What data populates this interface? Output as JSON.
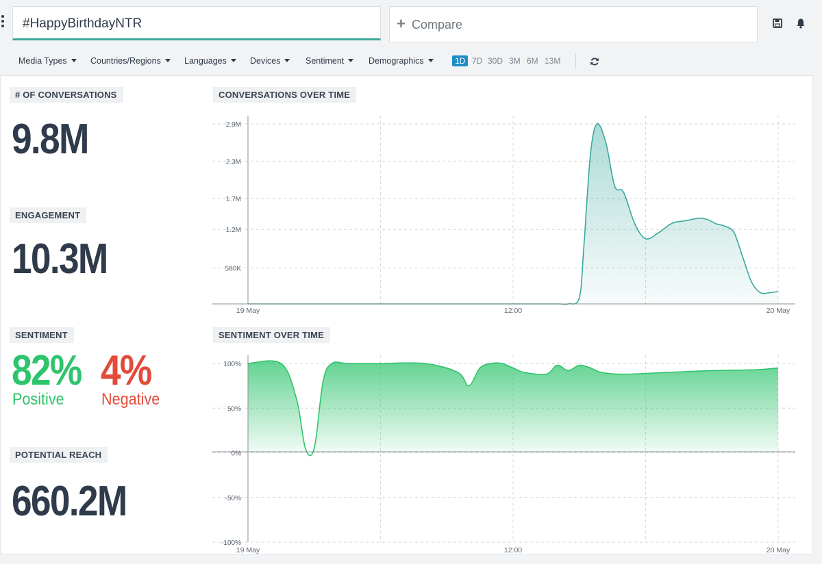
{
  "search": {
    "query": "#HappyBirthdayNTR"
  },
  "compare": {
    "label": "Compare"
  },
  "icons": {
    "menu": "more-vert-icon",
    "save": "save-icon",
    "notifications": "bell-icon",
    "add": "plus-icon",
    "refresh": "refresh-icon"
  },
  "filters": [
    {
      "label": "Media Types"
    },
    {
      "label": "Countries/Regions"
    },
    {
      "label": "Languages"
    },
    {
      "label": "Devices"
    },
    {
      "label": "Sentiment"
    },
    {
      "label": "Demographics"
    }
  ],
  "time_ranges": [
    {
      "label": "1D",
      "active": true
    },
    {
      "label": "7D",
      "active": false
    },
    {
      "label": "30D",
      "active": false
    },
    {
      "label": "3M",
      "active": false
    },
    {
      "label": "6M",
      "active": false
    },
    {
      "label": "13M",
      "active": false
    }
  ],
  "metrics": {
    "conversations": {
      "label": "# OF CONVERSATIONS",
      "value": "9.8M"
    },
    "engagement": {
      "label": "ENGAGEMENT",
      "value": "10.3M"
    },
    "sentiment": {
      "label": "SENTIMENT",
      "positive_value": "82%",
      "positive_label": "Positive",
      "negative_value": "4%",
      "negative_label": "Negative"
    },
    "reach": {
      "label": "POTENTIAL REACH",
      "value": "660.2M"
    }
  },
  "colors": {
    "accent": "#3aa89c",
    "positive": "#2ec46c",
    "negative": "#e24b3a",
    "active_range": "#1e8dc4"
  },
  "chart_data": [
    {
      "type": "area",
      "title": "CONVERSATIONS OVER TIME",
      "y_ticks": [
        "580K",
        "1.2M",
        "1.7M",
        "2.3M",
        "2.9M"
      ],
      "y_tick_values": [
        580000,
        1200000,
        1700000,
        2300000,
        2900000
      ],
      "ylim": [
        0,
        2900000
      ],
      "x_ticks": [
        "19 May",
        "12:00",
        "20 May"
      ],
      "x_tick_hours": [
        0,
        12,
        24
      ],
      "grid": true,
      "color": "#3aa89c",
      "series": [
        {
          "x": [
            0,
            2,
            4,
            6,
            8,
            10,
            12,
            14,
            14.5,
            15,
            15.2,
            15.5,
            15.8,
            16.2,
            16.6,
            17.0,
            17.5,
            18.0,
            18.6,
            19.2,
            19.8,
            20.4,
            20.8,
            21.2,
            21.6,
            22.0,
            22.4,
            22.8,
            23.2,
            23.6,
            24.0
          ],
          "values": [
            0,
            0,
            0,
            0,
            0,
            0,
            0,
            0,
            0,
            100000,
            900000,
            2400000,
            2900000,
            2600000,
            1900000,
            1800000,
            1300000,
            1050000,
            1150000,
            1300000,
            1340000,
            1380000,
            1360000,
            1290000,
            1250000,
            1150000,
            750000,
            350000,
            180000,
            180000,
            200000
          ]
        }
      ]
    },
    {
      "type": "area",
      "title": "SENTIMENT OVER TIME",
      "y_ticks": [
        "100%",
        "50%",
        "0%",
        "-50%",
        "-100%"
      ],
      "y_tick_values": [
        100,
        50,
        0,
        -50,
        -100
      ],
      "ylim": [
        -100,
        100
      ],
      "x_ticks": [
        "19 May",
        "12:00",
        "20 May"
      ],
      "x_tick_hours": [
        0,
        12,
        24
      ],
      "grid": true,
      "color": "#2ec46c",
      "series": [
        {
          "x": [
            0,
            1.5,
            2.2,
            2.6,
            3.0,
            3.4,
            3.8,
            4.5,
            6,
            8,
            9.5,
            10.0,
            10.5,
            11.0,
            11.5,
            12.0,
            12.5,
            13.5,
            14.0,
            14.5,
            15.0,
            15.5,
            16.0,
            17.0,
            19.0,
            21.0,
            23.0,
            24.0
          ],
          "values": [
            100,
            100,
            60,
            5,
            5,
            80,
            100,
            100,
            100,
            100,
            90,
            75,
            95,
            100,
            100,
            95,
            90,
            88,
            98,
            92,
            98,
            95,
            90,
            88,
            90,
            92,
            93,
            95
          ]
        }
      ]
    }
  ]
}
